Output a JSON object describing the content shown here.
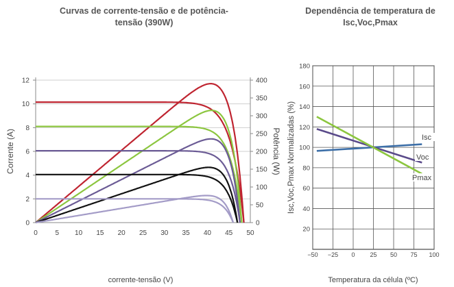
{
  "chart_data": [
    {
      "type": "line",
      "title": "Curvas de corrente-tensão e de potência-tensão (390W)",
      "xlabel": "corrente-tensão (V)",
      "ylabel": "Corrente (A)",
      "y2label": "Potência (W)",
      "xlim": [
        0,
        50
      ],
      "ylim": [
        0,
        12
      ],
      "y2lim": [
        0,
        400
      ],
      "x_ticks": [
        "0",
        "5",
        "10",
        "15",
        "20",
        "25",
        "30",
        "35",
        "40",
        "45",
        "50"
      ],
      "y_ticks": [
        "0",
        "2",
        "4",
        "6",
        "8",
        "10",
        "12"
      ],
      "y2_ticks": [
        "0",
        "50",
        "100",
        "150",
        "200",
        "250",
        "300",
        "350",
        "400"
      ],
      "series": [
        {
          "color": "#bf2430",
          "isc": 10.15,
          "voc": 48.5,
          "vmp": 41.0,
          "pmp": 390
        },
        {
          "color": "#8cc63f",
          "isc": 8.1,
          "voc": 48.0,
          "vmp": 40.8,
          "pmp": 315
        },
        {
          "color": "#6b5b95",
          "isc": 6.05,
          "voc": 47.6,
          "vmp": 40.6,
          "pmp": 235
        },
        {
          "color": "#111111",
          "isc": 4.05,
          "voc": 47.0,
          "vmp": 40.6,
          "pmp": 155
        },
        {
          "color": "#a39bc7",
          "isc": 2.0,
          "voc": 46.0,
          "vmp": 40.0,
          "pmp": 76
        }
      ]
    },
    {
      "type": "line",
      "title": "Dependência de temperatura de Isc,Voc,Pmax",
      "xlabel": "Temperatura da célula (ºC)",
      "ylabel": "Isc,Voc,Pmax Normalizadas (%)",
      "xlim": [
        -50,
        100
      ],
      "ylim": [
        0,
        180
      ],
      "x_ticks": [
        "−50",
        "−25",
        "0",
        "25",
        "50",
        "75",
        "100"
      ],
      "y_ticks": [
        "20",
        "40",
        "60",
        "80",
        "100",
        "120",
        "140",
        "160",
        "180"
      ],
      "grid": true,
      "series": [
        {
          "name": "Isc",
          "color": "#3d6fa8",
          "x": [
            -45,
            85
          ],
          "y": [
            96.5,
            103
          ]
        },
        {
          "name": "Voc",
          "color": "#5a4a8a",
          "x": [
            -45,
            85
          ],
          "y": [
            118,
            85
          ]
        },
        {
          "name": "Pmax",
          "color": "#8cc63f",
          "x": [
            -45,
            85
          ],
          "y": [
            130,
            74
          ]
        }
      ]
    }
  ]
}
